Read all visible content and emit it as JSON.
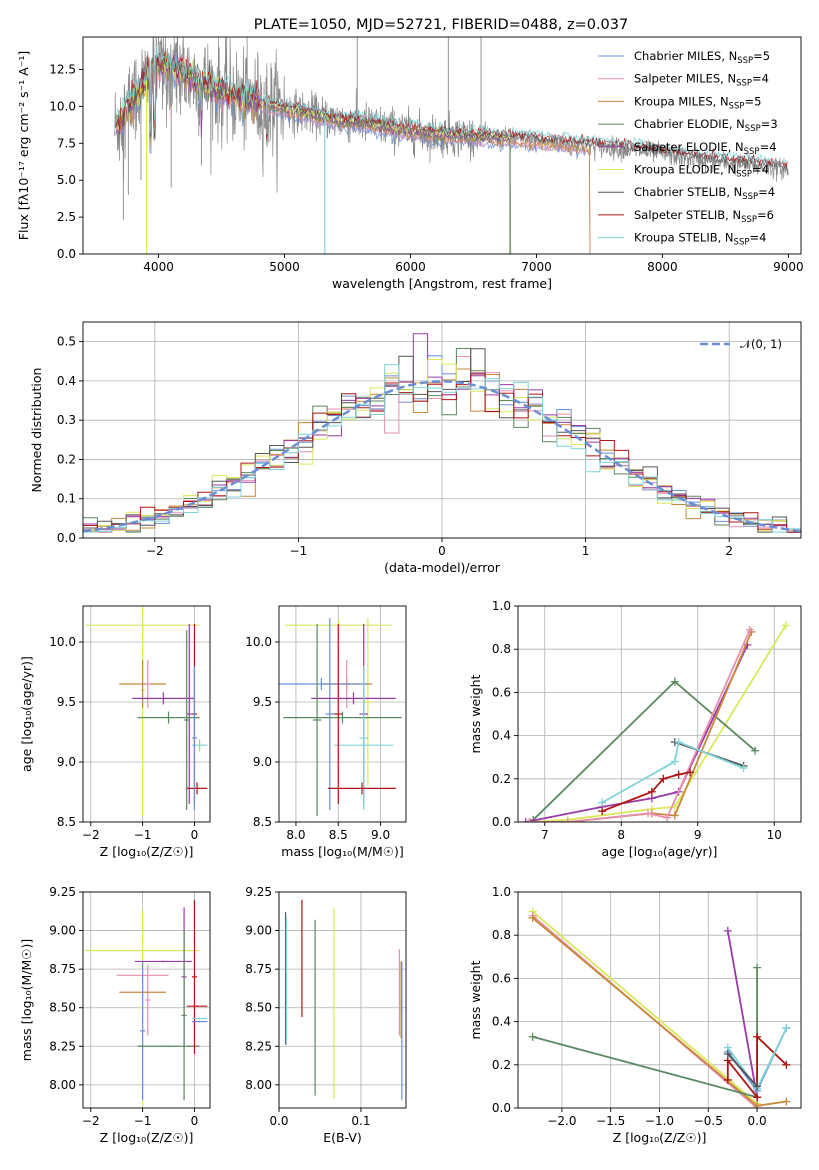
{
  "figure": {
    "title": "PLATE=1050, MJD=52721, FIBERID=0488, z=0.037",
    "colors": [
      "#6a8fd6",
      "#e68fb3",
      "#c8883a",
      "#5a8a5f",
      "#9a3aa8",
      "#d9e85a",
      "#555555",
      "#b01515",
      "#7fd4d9"
    ]
  },
  "chart_data": [
    {
      "id": "spectrum",
      "type": "line",
      "xlabel": "wavelength [Angstrom, rest frame]",
      "ylabel": "Flux [fλ10⁻¹⁷ erg cm⁻² s⁻¹ A⁻¹]",
      "xlim": [
        3400,
        9100
      ],
      "ylim": [
        0,
        14.7
      ],
      "xticks": [
        4000,
        5000,
        6000,
        7000,
        8000,
        9000
      ],
      "yticks": [
        0.0,
        2.5,
        5.0,
        7.5,
        10.0,
        12.5
      ],
      "ytick_labels": [
        "0.0",
        "2.5",
        "5.0",
        "7.5",
        "10.0",
        "12.5"
      ],
      "grid": false,
      "legend_position": "top-right",
      "data_series": {
        "name": "data",
        "color": "#888888"
      },
      "continuum": {
        "x": [
          3650,
          3800,
          3950,
          4000,
          4100,
          4200,
          4400,
          4600,
          4800,
          5000,
          5200,
          5400,
          5600,
          5800,
          6000,
          6200,
          6400,
          6600,
          6800,
          7000,
          7200,
          7400,
          7600,
          7800,
          8000,
          8200,
          8400,
          8600,
          8800,
          9000
        ],
        "y": [
          8.5,
          10.5,
          12.3,
          12.8,
          12.6,
          12.2,
          11.3,
          10.7,
          10.2,
          9.8,
          9.5,
          9.1,
          8.9,
          8.6,
          8.3,
          8.1,
          8.0,
          7.9,
          7.8,
          7.7,
          7.5,
          7.35,
          7.2,
          7.0,
          6.8,
          6.5,
          6.3,
          6.1,
          5.9,
          5.7
        ]
      },
      "series": [
        {
          "name": "Chabrier MILES, N_SSP=5",
          "legend_main": "Chabrier MILES, N",
          "legend_sub": "SSP",
          "legend_tail": "=5",
          "color": "#6a8fd6",
          "x_end": 7420
        },
        {
          "name": "Salpeter MILES, N_SSP=4",
          "legend_main": "Salpeter MILES, N",
          "legend_sub": "SSP",
          "legend_tail": "=4",
          "color": "#e68fb3",
          "x_end": 7420
        },
        {
          "name": "Kroupa MILES, N_SSP=5",
          "legend_main": "Kroupa MILES, N",
          "legend_sub": "SSP",
          "legend_tail": "=5",
          "color": "#c8883a",
          "x_end": 7420
        },
        {
          "name": "Chabrier ELODIE, N_SSP=3",
          "legend_main": "Chabrier ELODIE, N",
          "legend_sub": "SSP",
          "legend_tail": "=3",
          "color": "#5a8a5f",
          "x_end": 6790
        },
        {
          "name": "Salpeter ELODIE, N_SSP=4",
          "legend_main": "Salpeter ELODIE, N",
          "legend_sub": "SSP",
          "legend_tail": "=4",
          "color": "#9a3aa8",
          "x_end": 6790
        },
        {
          "name": "Kroupa ELODIE, N_SSP=4",
          "legend_main": "Kroupa ELODIE, N",
          "legend_sub": "SSP",
          "legend_tail": "=4",
          "color": "#d9e85a",
          "x_end": 6790
        },
        {
          "name": "Chabrier STELIB, N_SSP=4",
          "legend_main": "Chabrier STELIB, N",
          "legend_sub": "SSP",
          "legend_tail": "=4",
          "color": "#555555",
          "x_end": 9000
        },
        {
          "name": "Salpeter STELIB, N_SSP=6",
          "legend_main": "Salpeter STELIB, N",
          "legend_sub": "SSP",
          "legend_tail": "=6",
          "color": "#b01515",
          "x_end": 9000
        },
        {
          "name": "Kroupa STELIB, N_SSP=4",
          "legend_main": "Kroupa STELIB, N",
          "legend_sub": "SSP",
          "legend_tail": "=4",
          "color": "#7fd4d9",
          "x_end": 9000
        }
      ]
    },
    {
      "id": "residuals",
      "type": "histogram",
      "xlabel": "(data-model)/error",
      "ylabel": "Normed distribution",
      "xlim": [
        -2.5,
        2.5
      ],
      "ylim": [
        0,
        0.55
      ],
      "xticks": [
        -2,
        -1,
        0,
        1,
        2
      ],
      "xtick_labels": [
        "−2",
        "−1",
        "0",
        "1",
        "2"
      ],
      "yticks": [
        0.0,
        0.1,
        0.2,
        0.3,
        0.4,
        0.5
      ],
      "ytick_labels": [
        "0.0",
        "0.1",
        "0.2",
        "0.3",
        "0.4",
        "0.5"
      ],
      "grid": true,
      "bin_width": 0.1,
      "reference_curve": {
        "name": "𝒩(0, 1)",
        "color": "#6a8fd6",
        "style": "dashed",
        "legend_position": "top-right"
      }
    },
    {
      "id": "age-vs-Z",
      "type": "errorbar",
      "xlabel": "Z [log₁₀(Z/Z☉)]",
      "ylabel": "age  [log₁₀(age/yr)]",
      "xlim": [
        -2.15,
        0.3
      ],
      "ylim": [
        8.5,
        10.3
      ],
      "xticks": [
        -2,
        -1,
        0
      ],
      "xtick_labels": [
        "−2",
        "−1",
        "0"
      ],
      "yticks": [
        8.5,
        9.0,
        9.5,
        10.0
      ],
      "ytick_labels": [
        "8.5",
        "9.0",
        "9.5",
        "10.0"
      ],
      "grid": true,
      "points": [
        {
          "x": -1.0,
          "xerr": 1.1,
          "y": 10.14,
          "yerr": 0.05,
          "series": 5
        },
        {
          "x": -1.0,
          "xerr": 0.05,
          "y": 9.6,
          "yerr": 1.05,
          "series": 5
        },
        {
          "x": -1.0,
          "xerr": 0.45,
          "y": 9.65,
          "yerr": 0.2,
          "series": 2
        },
        {
          "x": -0.9,
          "xerr": 0.05,
          "y": 9.65,
          "yerr": 0.2,
          "series": 1
        },
        {
          "x": -0.6,
          "xerr": 0.6,
          "y": 9.53,
          "yerr": 0.05,
          "series": 4
        },
        {
          "x": -0.1,
          "xerr": 0.05,
          "y": 9.4,
          "yerr": 0.75,
          "series": 4
        },
        {
          "x": -0.5,
          "xerr": 0.6,
          "y": 9.37,
          "yerr": 0.05,
          "series": 3
        },
        {
          "x": -0.15,
          "xerr": 0.05,
          "y": 9.35,
          "yerr": 0.75,
          "series": 3
        },
        {
          "x": 0.0,
          "xerr": 0.05,
          "y": 9.4,
          "yerr": 0.75,
          "series": 7
        },
        {
          "x": 0.05,
          "xerr": 0.2,
          "y": 8.78,
          "yerr": 0.05,
          "series": 7
        },
        {
          "x": 0.1,
          "xerr": 0.15,
          "y": 9.14,
          "yerr": 0.05,
          "series": 8
        },
        {
          "x": 0.0,
          "xerr": 0.05,
          "y": 9.2,
          "yerr": 0.6,
          "series": 0
        }
      ]
    },
    {
      "id": "age-vs-mass",
      "type": "errorbar",
      "xlabel": "mass [log₁₀(M/M☉)]",
      "ylabel": "",
      "xlim": [
        7.8,
        9.3
      ],
      "ylim": [
        8.5,
        10.3
      ],
      "xticks": [
        8.0,
        8.5,
        9.0
      ],
      "xtick_labels": [
        "8.0",
        "8.5",
        "9.0"
      ],
      "yticks": [
        8.5,
        9.0,
        9.5,
        10.0
      ],
      "ytick_labels": [
        "8.5",
        "9.0",
        "9.5",
        "10.0"
      ],
      "grid": true,
      "points": [
        {
          "x": 8.5,
          "xerr": 0.63,
          "y": 10.14,
          "yerr": 0.05,
          "series": 5
        },
        {
          "x": 8.85,
          "xerr": 0.05,
          "y": 9.5,
          "yerr": 0.7,
          "series": 5
        },
        {
          "x": 8.6,
          "xerr": 0.3,
          "y": 9.65,
          "yerr": 0.05,
          "series": 2
        },
        {
          "x": 8.6,
          "xerr": 0.05,
          "y": 9.65,
          "yerr": 0.2,
          "series": 1
        },
        {
          "x": 8.3,
          "xerr": 0.55,
          "y": 9.65,
          "yerr": 0.05,
          "series": 0
        },
        {
          "x": 8.4,
          "xerr": 0.05,
          "y": 9.4,
          "yerr": 0.8,
          "series": 0
        },
        {
          "x": 8.68,
          "xerr": 0.5,
          "y": 9.53,
          "yerr": 0.05,
          "series": 4
        },
        {
          "x": 8.8,
          "xerr": 0.05,
          "y": 9.4,
          "yerr": 0.75,
          "series": 4
        },
        {
          "x": 8.55,
          "xerr": 0.7,
          "y": 9.37,
          "yerr": 0.05,
          "series": 3
        },
        {
          "x": 8.25,
          "xerr": 0.05,
          "y": 9.35,
          "yerr": 0.8,
          "series": 3
        },
        {
          "x": 8.8,
          "xerr": 0.35,
          "y": 9.14,
          "yerr": 0.05,
          "series": 8
        },
        {
          "x": 8.8,
          "xerr": 0.05,
          "y": 9.2,
          "yerr": 0.6,
          "series": 8
        },
        {
          "x": 8.78,
          "xerr": 0.4,
          "y": 8.78,
          "yerr": 0.05,
          "series": 7
        },
        {
          "x": 8.5,
          "xerr": 0.05,
          "y": 9.4,
          "yerr": 0.75,
          "series": 7
        }
      ]
    },
    {
      "id": "weight-vs-age",
      "type": "line",
      "xlabel": "age  [log₁₀(age/yr)]",
      "ylabel": "mass weight",
      "xlim": [
        6.65,
        10.35
      ],
      "ylim": [
        0,
        1.0
      ],
      "xticks": [
        7,
        8,
        9,
        10
      ],
      "xtick_labels": [
        "7",
        "8",
        "9",
        "10"
      ],
      "yticks": [
        0.0,
        0.2,
        0.4,
        0.6,
        0.8,
        1.0
      ],
      "ytick_labels": [
        "0.0",
        "0.2",
        "0.4",
        "0.6",
        "0.8",
        "1.0"
      ],
      "grid": true,
      "lines": [
        {
          "series": 5,
          "x": [
            6.8,
            7.3,
            8.4,
            8.7,
            10.15
          ],
          "y": [
            0.0,
            0.01,
            0.06,
            0.07,
            0.91
          ]
        },
        {
          "series": 3,
          "x": [
            6.85,
            8.7,
            9.75
          ],
          "y": [
            0.01,
            0.65,
            0.33
          ]
        },
        {
          "series": 4,
          "x": [
            6.75,
            7.75,
            8.4,
            8.75,
            9.65
          ],
          "y": [
            0.0,
            0.07,
            0.11,
            0.14,
            0.82
          ]
        },
        {
          "series": 2,
          "x": [
            6.8,
            7.3,
            8.4,
            8.7,
            9.7
          ],
          "y": [
            0.0,
            0.0,
            0.04,
            0.03,
            0.88
          ]
        },
        {
          "series": 1,
          "x": [
            6.8,
            7.3,
            8.35,
            8.6,
            9.68
          ],
          "y": [
            0.0,
            0.0,
            0.04,
            0.02,
            0.89
          ]
        },
        {
          "series": 7,
          "x": [
            7.75,
            8.4,
            8.55,
            8.75,
            8.9
          ],
          "y": [
            0.05,
            0.14,
            0.2,
            0.22,
            0.23
          ]
        },
        {
          "series": 6,
          "x": [
            8.7,
            9.6
          ],
          "y": [
            0.37,
            0.26
          ]
        },
        {
          "series": 8,
          "x": [
            7.75,
            8.7,
            8.75,
            9.6
          ],
          "y": [
            0.09,
            0.28,
            0.37,
            0.25
          ]
        }
      ]
    },
    {
      "id": "mass-vs-Z",
      "type": "errorbar",
      "xlabel": "Z [log₁₀(Z/Z☉)]",
      "ylabel": "mass [log₁₀(M/M☉)]",
      "xlim": [
        -2.15,
        0.3
      ],
      "ylim": [
        7.85,
        9.25
      ],
      "xticks": [
        -2,
        -1,
        0
      ],
      "xtick_labels": [
        "−2",
        "−1",
        "0"
      ],
      "yticks": [
        8.0,
        8.25,
        8.5,
        8.75,
        9.0,
        9.25
      ],
      "ytick_labels": [
        "8.00",
        "8.25",
        "8.50",
        "8.75",
        "9.00",
        "9.25"
      ],
      "grid": true,
      "points": [
        {
          "x": -1.0,
          "xerr": 1.1,
          "y": 8.87,
          "yerr": 0.005,
          "series": 5
        },
        {
          "x": -1.0,
          "xerr": 0.05,
          "y": 8.5,
          "yerr": 0.65,
          "series": 5
        },
        {
          "x": -1.0,
          "xerr": 0.5,
          "y": 8.71,
          "yerr": 0.005,
          "series": 1
        },
        {
          "x": -0.9,
          "xerr": 0.05,
          "y": 8.55,
          "yerr": 0.23,
          "series": 1
        },
        {
          "x": -1.0,
          "xerr": 0.45,
          "y": 8.6,
          "yerr": 0.01,
          "series": 2
        },
        {
          "x": -1.0,
          "xerr": 0.05,
          "y": 8.35,
          "yerr": 0.45,
          "series": 0
        },
        {
          "x": -0.6,
          "xerr": 0.55,
          "y": 8.8,
          "yerr": 0.005,
          "series": 4
        },
        {
          "x": -0.2,
          "xerr": 0.05,
          "y": 8.7,
          "yerr": 0.45,
          "series": 4
        },
        {
          "x": -0.5,
          "xerr": 0.6,
          "y": 8.25,
          "yerr": 0.005,
          "series": 3
        },
        {
          "x": -0.2,
          "xerr": 0.05,
          "y": 8.45,
          "yerr": 0.55,
          "series": 3
        },
        {
          "x": 0.0,
          "xerr": 0.05,
          "y": 8.7,
          "yerr": 0.5,
          "series": 7
        },
        {
          "x": 0.05,
          "xerr": 0.2,
          "y": 8.51,
          "yerr": 0.005,
          "series": 7
        },
        {
          "x": 0.1,
          "xerr": 0.15,
          "y": 8.43,
          "yerr": 0.005,
          "series": 8
        },
        {
          "x": 0.1,
          "xerr": 0.15,
          "y": 8.41,
          "yerr": 0.005,
          "series": 0
        }
      ]
    },
    {
      "id": "mass-vs-ebv",
      "type": "errorbar",
      "xlabel": "E(B-V)",
      "ylabel": "",
      "xlim": [
        0.0,
        0.155
      ],
      "ylim": [
        7.85,
        9.25
      ],
      "xticks": [
        0.0,
        0.1
      ],
      "xtick_labels": [
        "0.0",
        "0.1"
      ],
      "yticks": [
        8.0,
        8.25,
        8.5,
        8.75,
        9.0,
        9.25
      ],
      "ytick_labels": [
        "8.00",
        "8.25",
        "8.50",
        "8.75",
        "9.00",
        "9.25"
      ],
      "grid": true,
      "points": [
        {
          "x": 0.008,
          "xerr": 0.0005,
          "y": 8.69,
          "yerr": 0.43,
          "series": 6
        },
        {
          "x": 0.009,
          "xerr": 0.0005,
          "y": 8.68,
          "yerr": 0.42,
          "series": 8
        },
        {
          "x": 0.028,
          "xerr": 0.0005,
          "y": 8.82,
          "yerr": 0.38,
          "series": 7
        },
        {
          "x": 0.044,
          "xerr": 0.0005,
          "y": 8.5,
          "yerr": 0.57,
          "series": 3
        },
        {
          "x": 0.067,
          "xerr": 0.0005,
          "y": 8.53,
          "yerr": 0.62,
          "series": 5
        },
        {
          "x": 0.147,
          "xerr": 0.0005,
          "y": 8.6,
          "yerr": 0.28,
          "series": 1
        },
        {
          "x": 0.149,
          "xerr": 0.0005,
          "y": 8.55,
          "yerr": 0.25,
          "series": 2
        },
        {
          "x": 0.15,
          "xerr": 0.0005,
          "y": 8.35,
          "yerr": 0.45,
          "series": 0
        }
      ]
    },
    {
      "id": "weight-vs-Z",
      "type": "line",
      "xlabel": "Z [log₁₀(Z/Z☉)]",
      "ylabel": "mass weight",
      "xlim": [
        -2.45,
        0.45
      ],
      "ylim": [
        0,
        1.0
      ],
      "xticks": [
        -2.0,
        -1.5,
        -1.0,
        -0.5,
        0.0
      ],
      "xtick_labels": [
        "−2.0",
        "−1.5",
        "−1.0",
        "−0.5",
        "0.0"
      ],
      "yticks": [
        0.0,
        0.2,
        0.4,
        0.6,
        0.8,
        1.0
      ],
      "ytick_labels": [
        "0.0",
        "0.2",
        "0.4",
        "0.6",
        "0.8",
        "1.0"
      ],
      "grid": true,
      "lines": [
        {
          "series": 5,
          "x": [
            -2.3,
            0.0
          ],
          "y": [
            0.91,
            0.02
          ]
        },
        {
          "series": 1,
          "x": [
            -2.3,
            0.0
          ],
          "y": [
            0.89,
            0.0
          ]
        },
        {
          "series": 2,
          "x": [
            -2.3,
            0.0,
            0.3
          ],
          "y": [
            0.88,
            0.01,
            0.03
          ]
        },
        {
          "series": 3,
          "x": [
            -2.3,
            0.0,
            0.0
          ],
          "y": [
            0.33,
            0.05,
            0.65
          ]
        },
        {
          "series": 4,
          "x": [
            -0.3,
            0.0
          ],
          "y": [
            0.82,
            0.05
          ]
        },
        {
          "series": 7,
          "x": [
            -0.3,
            -0.3,
            0.0,
            0.0,
            0.3
          ],
          "y": [
            0.13,
            0.22,
            0.05,
            0.33,
            0.2
          ]
        },
        {
          "series": 0,
          "x": [
            -0.3,
            0.0,
            0.3
          ],
          "y": [
            0.26,
            0.08,
            0.37
          ]
        },
        {
          "series": 8,
          "x": [
            -0.3,
            0.0,
            0.3
          ],
          "y": [
            0.28,
            0.09,
            0.37
          ]
        },
        {
          "series": 6,
          "x": [
            -0.3,
            0.0
          ],
          "y": [
            0.25,
            0.1
          ]
        }
      ]
    }
  ]
}
